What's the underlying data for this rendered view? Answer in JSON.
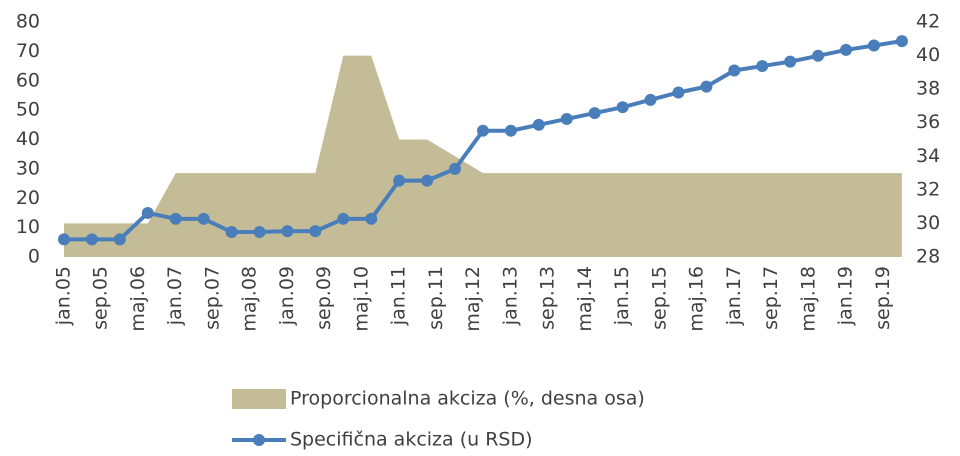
{
  "chart_data": {
    "type": "line",
    "x": [
      "2005-01",
      "2005-07",
      "2006-01",
      "2006-07",
      "2007-01",
      "2007-07",
      "2008-01",
      "2008-07",
      "2009-01",
      "2009-07",
      "2010-01",
      "2010-07",
      "2011-01",
      "2011-07",
      "2012-01",
      "2012-07",
      "2013-01",
      "2013-07",
      "2014-01",
      "2014-07",
      "2015-01",
      "2015-07",
      "2016-01",
      "2016-07",
      "2017-01",
      "2017-07",
      "2018-01",
      "2018-07",
      "2019-01",
      "2019-07",
      "2020-01"
    ],
    "xticks": [
      {
        "value": "2005-01",
        "label": "jan.05"
      },
      {
        "value": "2005-09",
        "label": "sep.05"
      },
      {
        "value": "2006-05",
        "label": "maj.06"
      },
      {
        "value": "2007-01",
        "label": "jan.07"
      },
      {
        "value": "2007-09",
        "label": "sep.07"
      },
      {
        "value": "2008-05",
        "label": "maj.08"
      },
      {
        "value": "2009-01",
        "label": "jan.09"
      },
      {
        "value": "2009-09",
        "label": "sep.09"
      },
      {
        "value": "2010-05",
        "label": "maj.10"
      },
      {
        "value": "2011-01",
        "label": "jan.11"
      },
      {
        "value": "2011-09",
        "label": "sep.11"
      },
      {
        "value": "2012-05",
        "label": "maj.12"
      },
      {
        "value": "2013-01",
        "label": "jan.13"
      },
      {
        "value": "2013-09",
        "label": "sep.13"
      },
      {
        "value": "2014-05",
        "label": "maj.14"
      },
      {
        "value": "2015-01",
        "label": "jan.15"
      },
      {
        "value": "2015-09",
        "label": "sep.15"
      },
      {
        "value": "2016-05",
        "label": "maj.16"
      },
      {
        "value": "2017-01",
        "label": "jan.17"
      },
      {
        "value": "2017-09",
        "label": "sep.17"
      },
      {
        "value": "2018-05",
        "label": "maj.18"
      },
      {
        "value": "2019-01",
        "label": "jan.19"
      },
      {
        "value": "2019-09",
        "label": "sep.19"
      }
    ],
    "series": [
      {
        "name": "Proporcionalna akciza (%, desna osa)",
        "type": "area",
        "axis": "y2",
        "color": "#c4bc96",
        "values": [
          30,
          30,
          30,
          30,
          33,
          33,
          33,
          33,
          33,
          33,
          40,
          40,
          35,
          35,
          34,
          33,
          33,
          33,
          33,
          33,
          33,
          33,
          33,
          33,
          33,
          33,
          33,
          33,
          33,
          33,
          33
        ]
      },
      {
        "name": "Specifična akciza (u RSD)",
        "type": "line",
        "color": "#4a7ebb",
        "values": [
          6,
          6,
          6,
          15,
          13,
          13,
          8.5,
          8.5,
          8.8,
          8.8,
          13,
          13,
          26,
          26,
          30,
          43,
          43,
          45,
          47,
          49,
          51,
          53.5,
          56,
          58,
          63.5,
          65,
          66.5,
          68.5,
          70.5,
          72,
          73.5
        ]
      }
    ],
    "ylim": [
      0,
      80
    ],
    "yticks": [
      0,
      10,
      20,
      30,
      40,
      50,
      60,
      70,
      80
    ],
    "y2lim": [
      28,
      42
    ],
    "y2ticks": [
      28,
      30,
      32,
      34,
      36,
      38,
      40,
      42
    ],
    "grid": false
  }
}
